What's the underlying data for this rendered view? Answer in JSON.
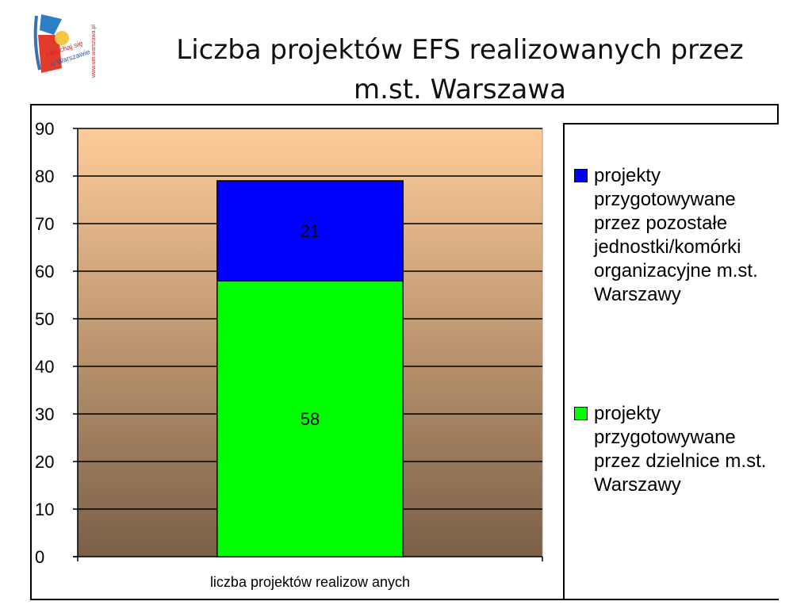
{
  "slide": {
    "title": "Liczba projektów EFS realizowanych przez\nm.st. Warszawa",
    "logo": {
      "text_line1": "zakochaj się",
      "text_line2": "w Warszawie",
      "url": "www.um.warszawa.pl",
      "icon": "warsaw-logo-icon"
    }
  },
  "chart_data": {
    "type": "bar",
    "stacked": true,
    "categories": [
      "liczba projektów  realizow anych"
    ],
    "series": [
      {
        "name": "projekty przygotowywane przez dzielnice m.st. Warszawy",
        "values": [
          58
        ],
        "color": "#00ff00"
      },
      {
        "name": "projekty przygotowywane przez pozostałe jednostki/komórki organizacyjne m.st. Warszawy",
        "values": [
          21
        ],
        "color": "#0000ff"
      }
    ],
    "ylim": [
      0,
      90
    ],
    "yticks": [
      0,
      10,
      20,
      30,
      40,
      50,
      60,
      70,
      80,
      90
    ],
    "grid": true,
    "legend_position": "right",
    "plot_background": {
      "top": "#ffcc99",
      "bottom": "#7a5f47"
    }
  },
  "legend": {
    "items": [
      {
        "label": "projekty przygotowywane przez pozostałe jednostki/komórki organizacyjne m.st. Warszawy",
        "color": "#0000ff"
      },
      {
        "label": "projekty przygotowywane przez dzielnice m.st. Warszawy",
        "color": "#00ff00"
      }
    ]
  }
}
